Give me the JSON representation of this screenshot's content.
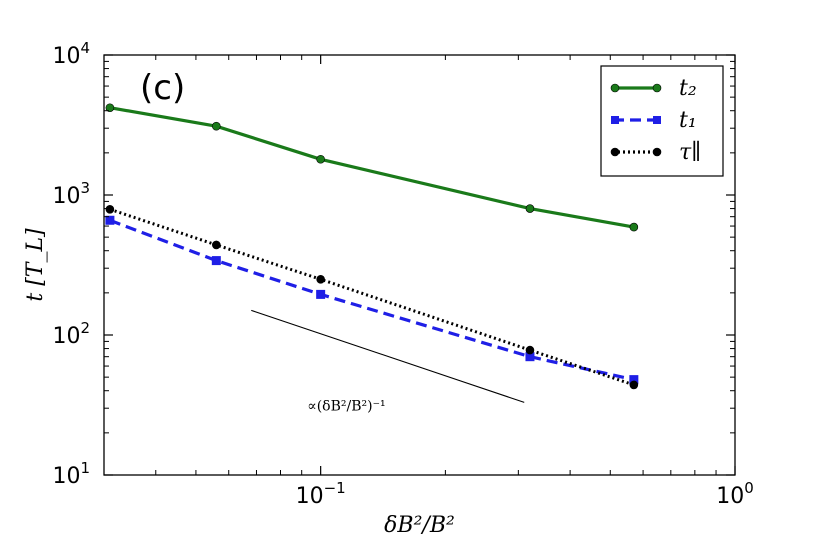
{
  "chart_data": {
    "type": "line",
    "panel_label": "(c)",
    "xlabel": "δB²/B²",
    "ylabel": "t [T_L]",
    "xscale": "log",
    "yscale": "log",
    "xlim": [
      0.03,
      1.0
    ],
    "ylim": [
      10,
      10000
    ],
    "x_ticks": [
      {
        "value": 0.1,
        "base": "10",
        "exp": "−1"
      },
      {
        "value": 1.0,
        "base": "10",
        "exp": "0"
      }
    ],
    "y_ticks": [
      {
        "value": 10,
        "base": "10",
        "exp": "1"
      },
      {
        "value": 100,
        "base": "10",
        "exp": "2"
      },
      {
        "value": 1000,
        "base": "10",
        "exp": "3"
      },
      {
        "value": 10000,
        "base": "10",
        "exp": "4"
      }
    ],
    "x": [
      0.031,
      0.056,
      0.1,
      0.32,
      0.57
    ],
    "series": [
      {
        "name": "t₂",
        "color": "#1a7a1a",
        "style": "solid",
        "marker": "circle",
        "values": [
          4200,
          3100,
          1800,
          800,
          590
        ]
      },
      {
        "name": "t₁",
        "color": "#1f1fe6",
        "style": "dashed",
        "marker": "square",
        "values": [
          660,
          340,
          195,
          70,
          48
        ]
      },
      {
        "name": "τ∥",
        "color": "#000000",
        "style": "dotted",
        "marker": "circle",
        "values": [
          790,
          440,
          250,
          78,
          44
        ]
      }
    ],
    "reference_line": {
      "label": "∝(δB²/B²)⁻¹",
      "x": [
        0.068,
        0.31
      ],
      "y": [
        150,
        33
      ]
    },
    "legend_location": "top-right"
  }
}
